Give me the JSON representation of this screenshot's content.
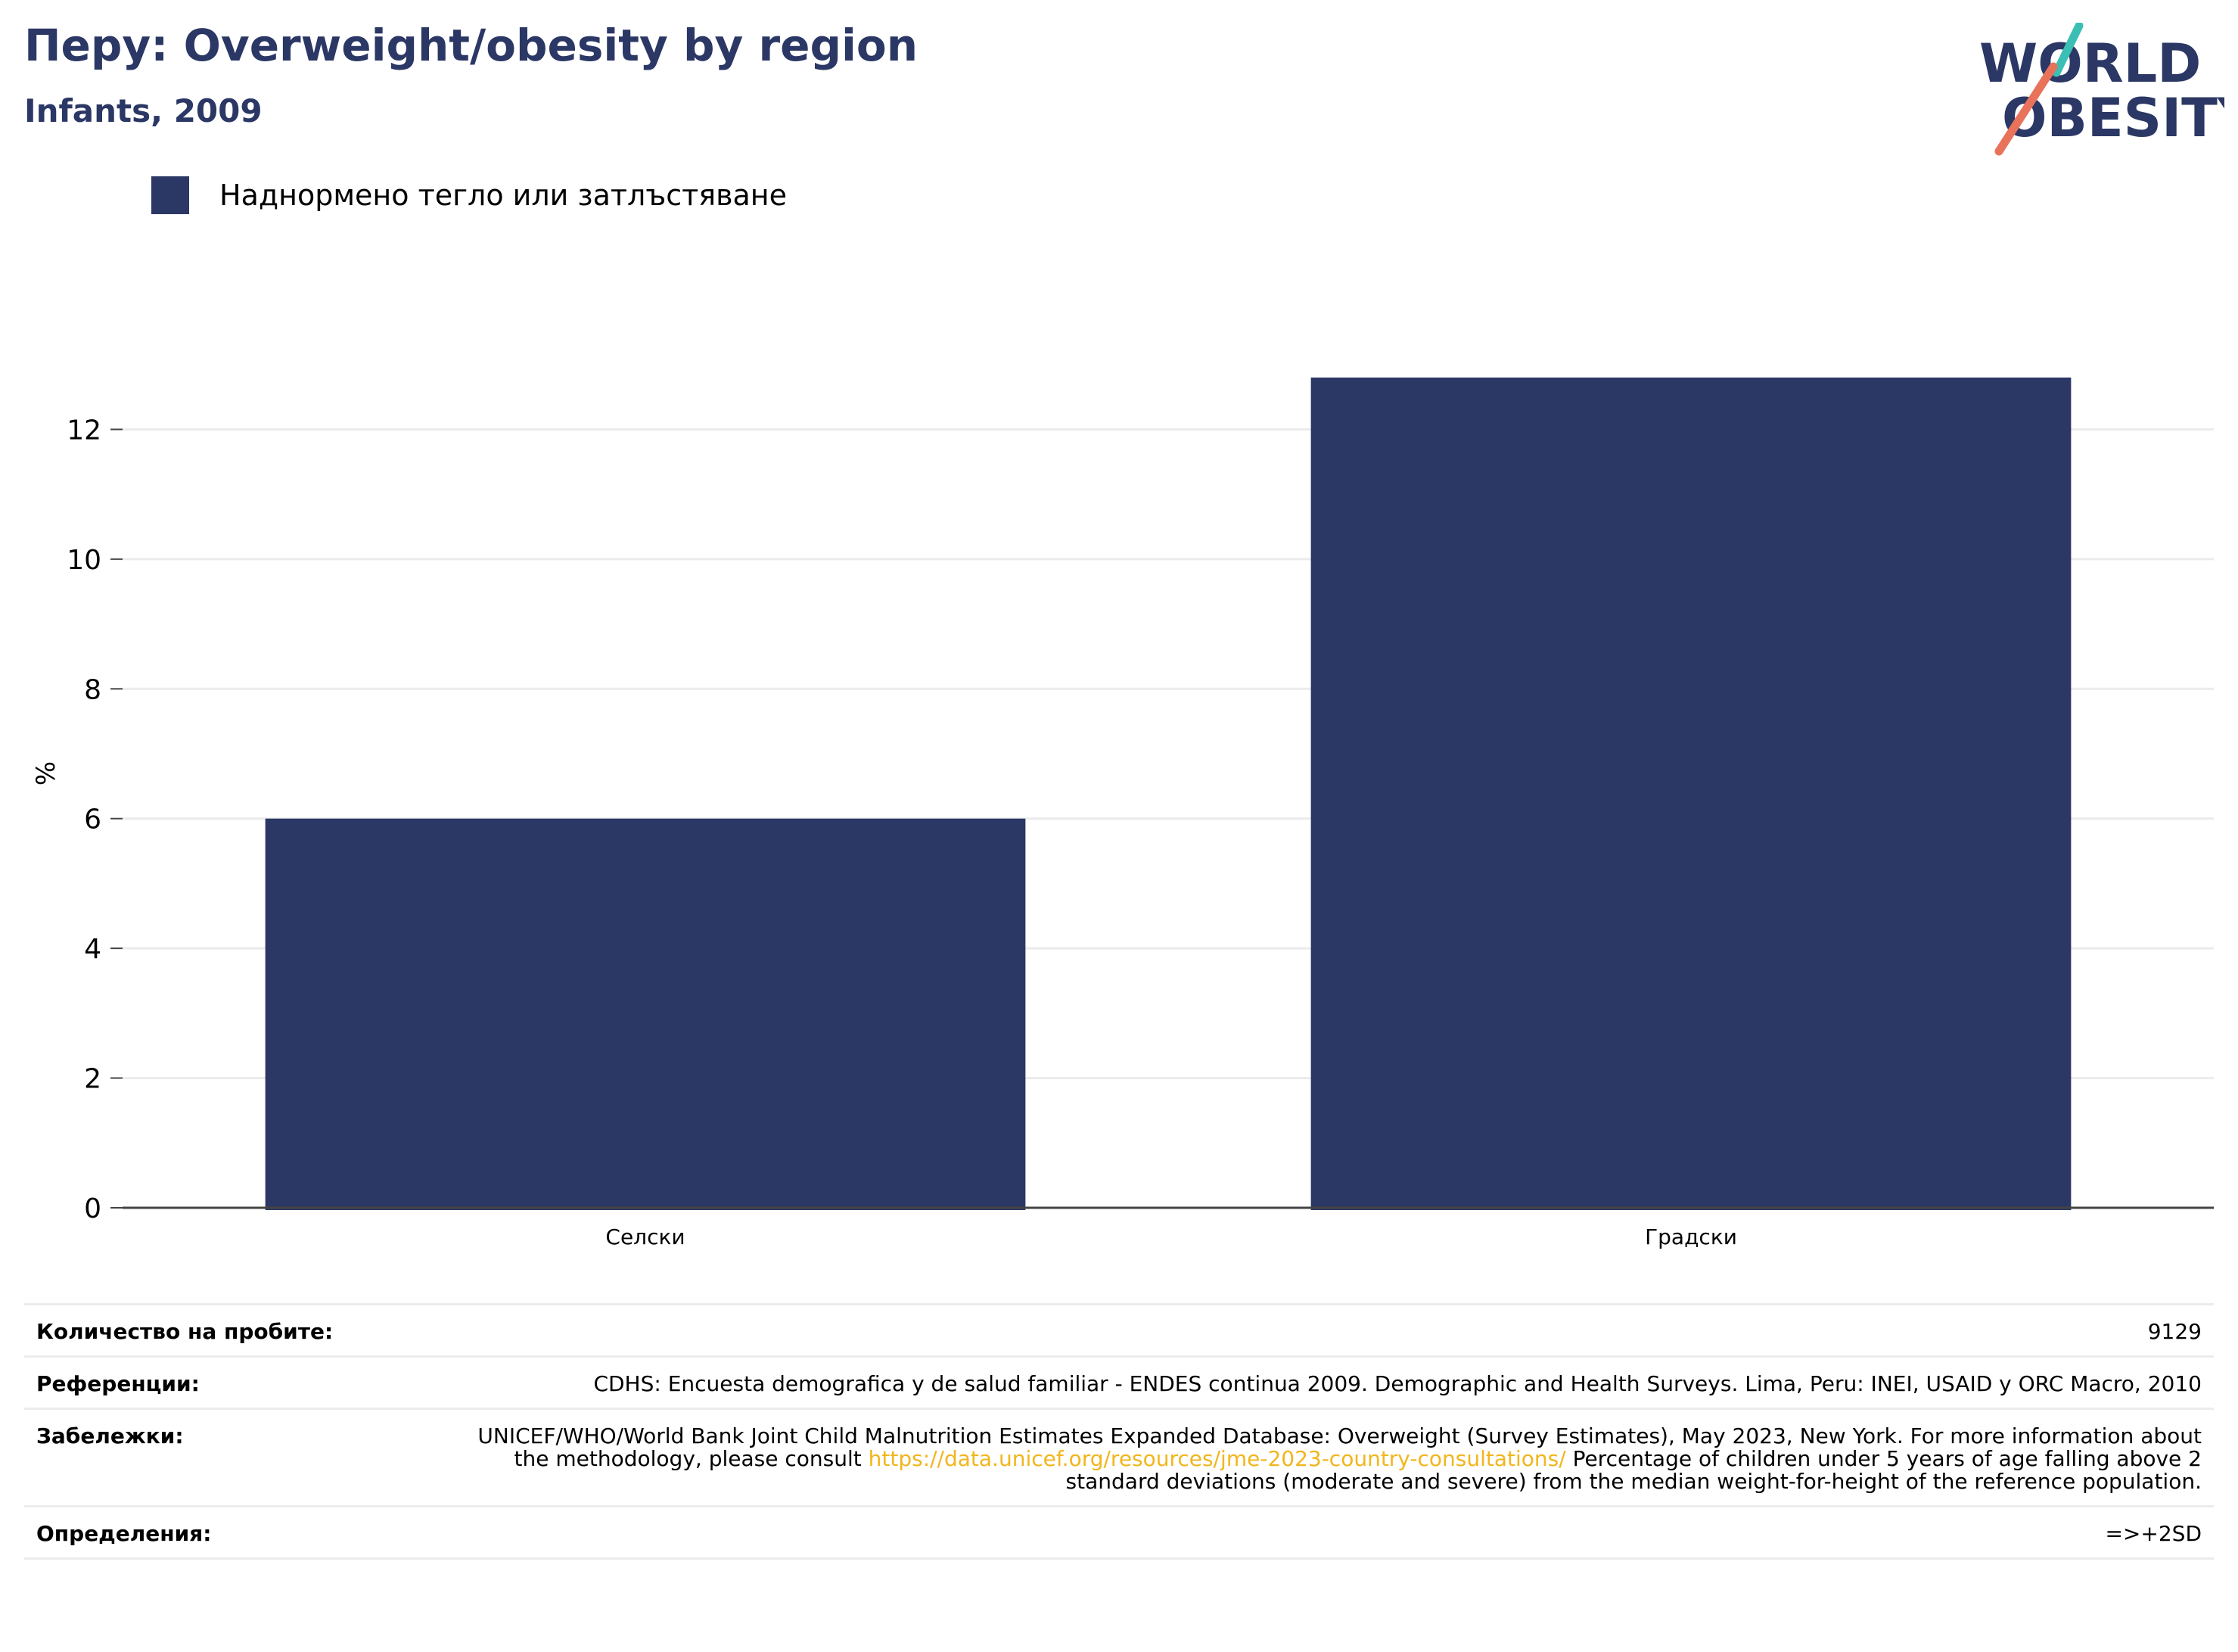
{
  "header": {
    "title": "Перу: Overweight/obesity by region",
    "subtitle": "Infants, 2009"
  },
  "logo": {
    "icon": "world-obesity-logo",
    "line1": "WORLD",
    "line2": "OBESITY",
    "colors": {
      "text": "#2b3764",
      "teal": "#3bbfb5",
      "coral": "#e8735a"
    }
  },
  "chart_data": {
    "type": "bar",
    "categories": [
      "Селски",
      "Градски"
    ],
    "series": [
      {
        "name": "Наднормено тегло или затлъстяване",
        "values": [
          6.0,
          12.8
        ],
        "color": "#2b3764"
      }
    ],
    "xlabel": "",
    "ylabel": "%",
    "ylim": [
      0,
      13.3
    ],
    "yticks": [
      0,
      2,
      4,
      6,
      8,
      10,
      12
    ],
    "grid": true,
    "legend": "top-left"
  },
  "info": {
    "sample_size": {
      "label": "Количество на пробите:",
      "value": "9129"
    },
    "references": {
      "label": "Референции:",
      "value": "CDHS: Encuesta demografica y de salud familiar - ENDES continua 2009. Demographic and Health Surveys. Lima, Peru: INEI, USAID y ORC Macro, 2010"
    },
    "notes": {
      "label": "Забележки:",
      "text_before": "UNICEF/WHO/World Bank Joint Child Malnutrition Estimates Expanded Database: Overweight (Survey Estimates), May 2023, New York. For more information about the methodology, please consult ",
      "link": "https://data.unicef.org/resources/jme-2023-country-consultations/",
      "text_after": " Percentage of children under 5 years of age falling above 2 standard deviations (moderate and severe) from the median weight-for-height of the reference population."
    },
    "definitions": {
      "label": "Определения:",
      "value": "=>+2SD"
    }
  }
}
